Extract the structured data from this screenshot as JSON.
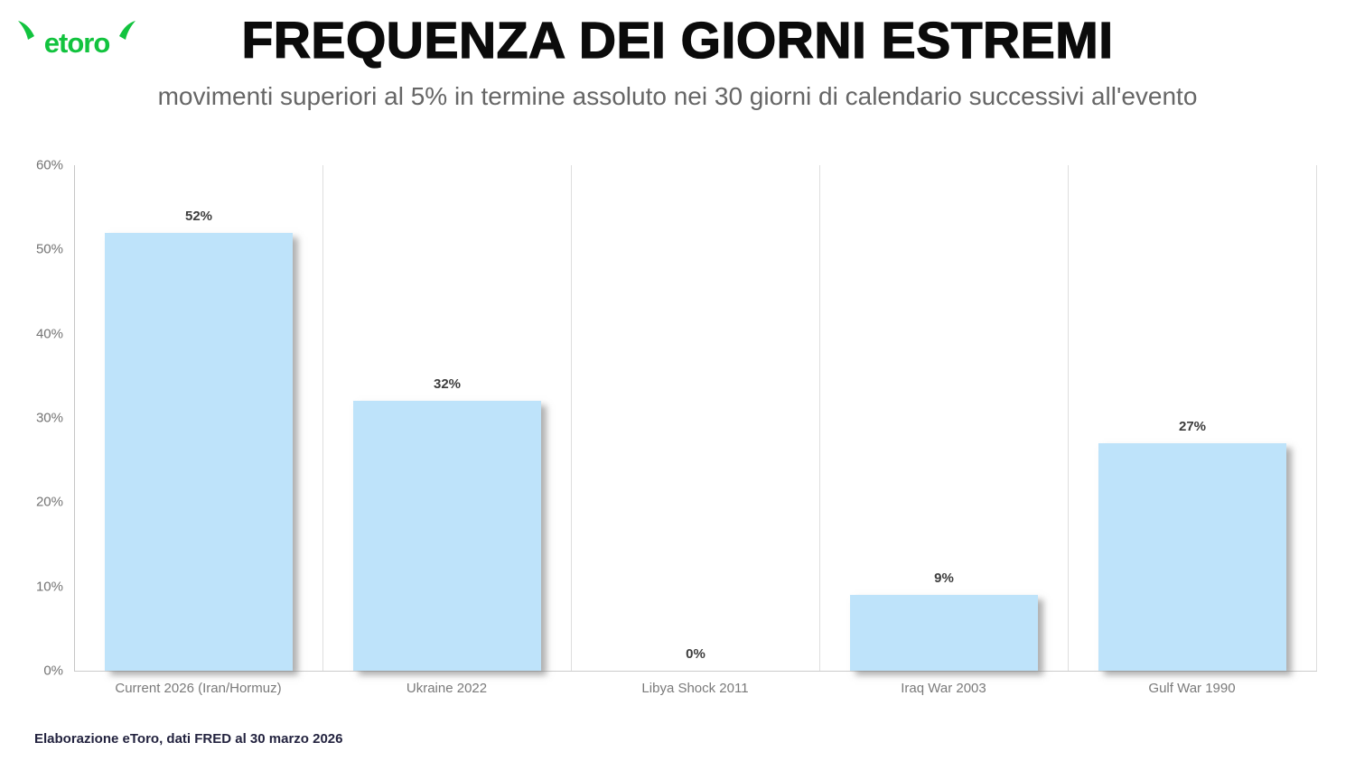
{
  "logo": {
    "text": "etoro",
    "color": "#12c33e"
  },
  "header": {
    "title": "FREQUENZA DEI GIORNI ESTREMI",
    "subtitle": "movimenti superiori al 5% in termine assoluto nei 30 giorni di calendario successivi all'evento"
  },
  "chart_data": {
    "type": "bar",
    "categories": [
      "Current 2026 (Iran/Hormuz)",
      "Ukraine 2022",
      "Libya Shock 2011",
      "Iraq War 2003",
      "Gulf War 1990"
    ],
    "values": [
      52,
      32,
      0,
      9,
      27
    ],
    "value_labels": [
      "52%",
      "32%",
      "0%",
      "9%",
      "27%"
    ],
    "title": "FREQUENZA DEI GIORNI ESTREMI",
    "xlabel": "",
    "ylabel": "",
    "ylim": [
      0,
      60
    ],
    "yticks": [
      "0%",
      "10%",
      "20%",
      "30%",
      "40%",
      "50%",
      "60%"
    ],
    "grid": "vertical category separators only, no horizontal gridlines",
    "legend_position": "none",
    "bar_color": "#bee3fa"
  },
  "footer": {
    "text": "Elaborazione eToro, dati FRED al 30 marzo 2026"
  }
}
